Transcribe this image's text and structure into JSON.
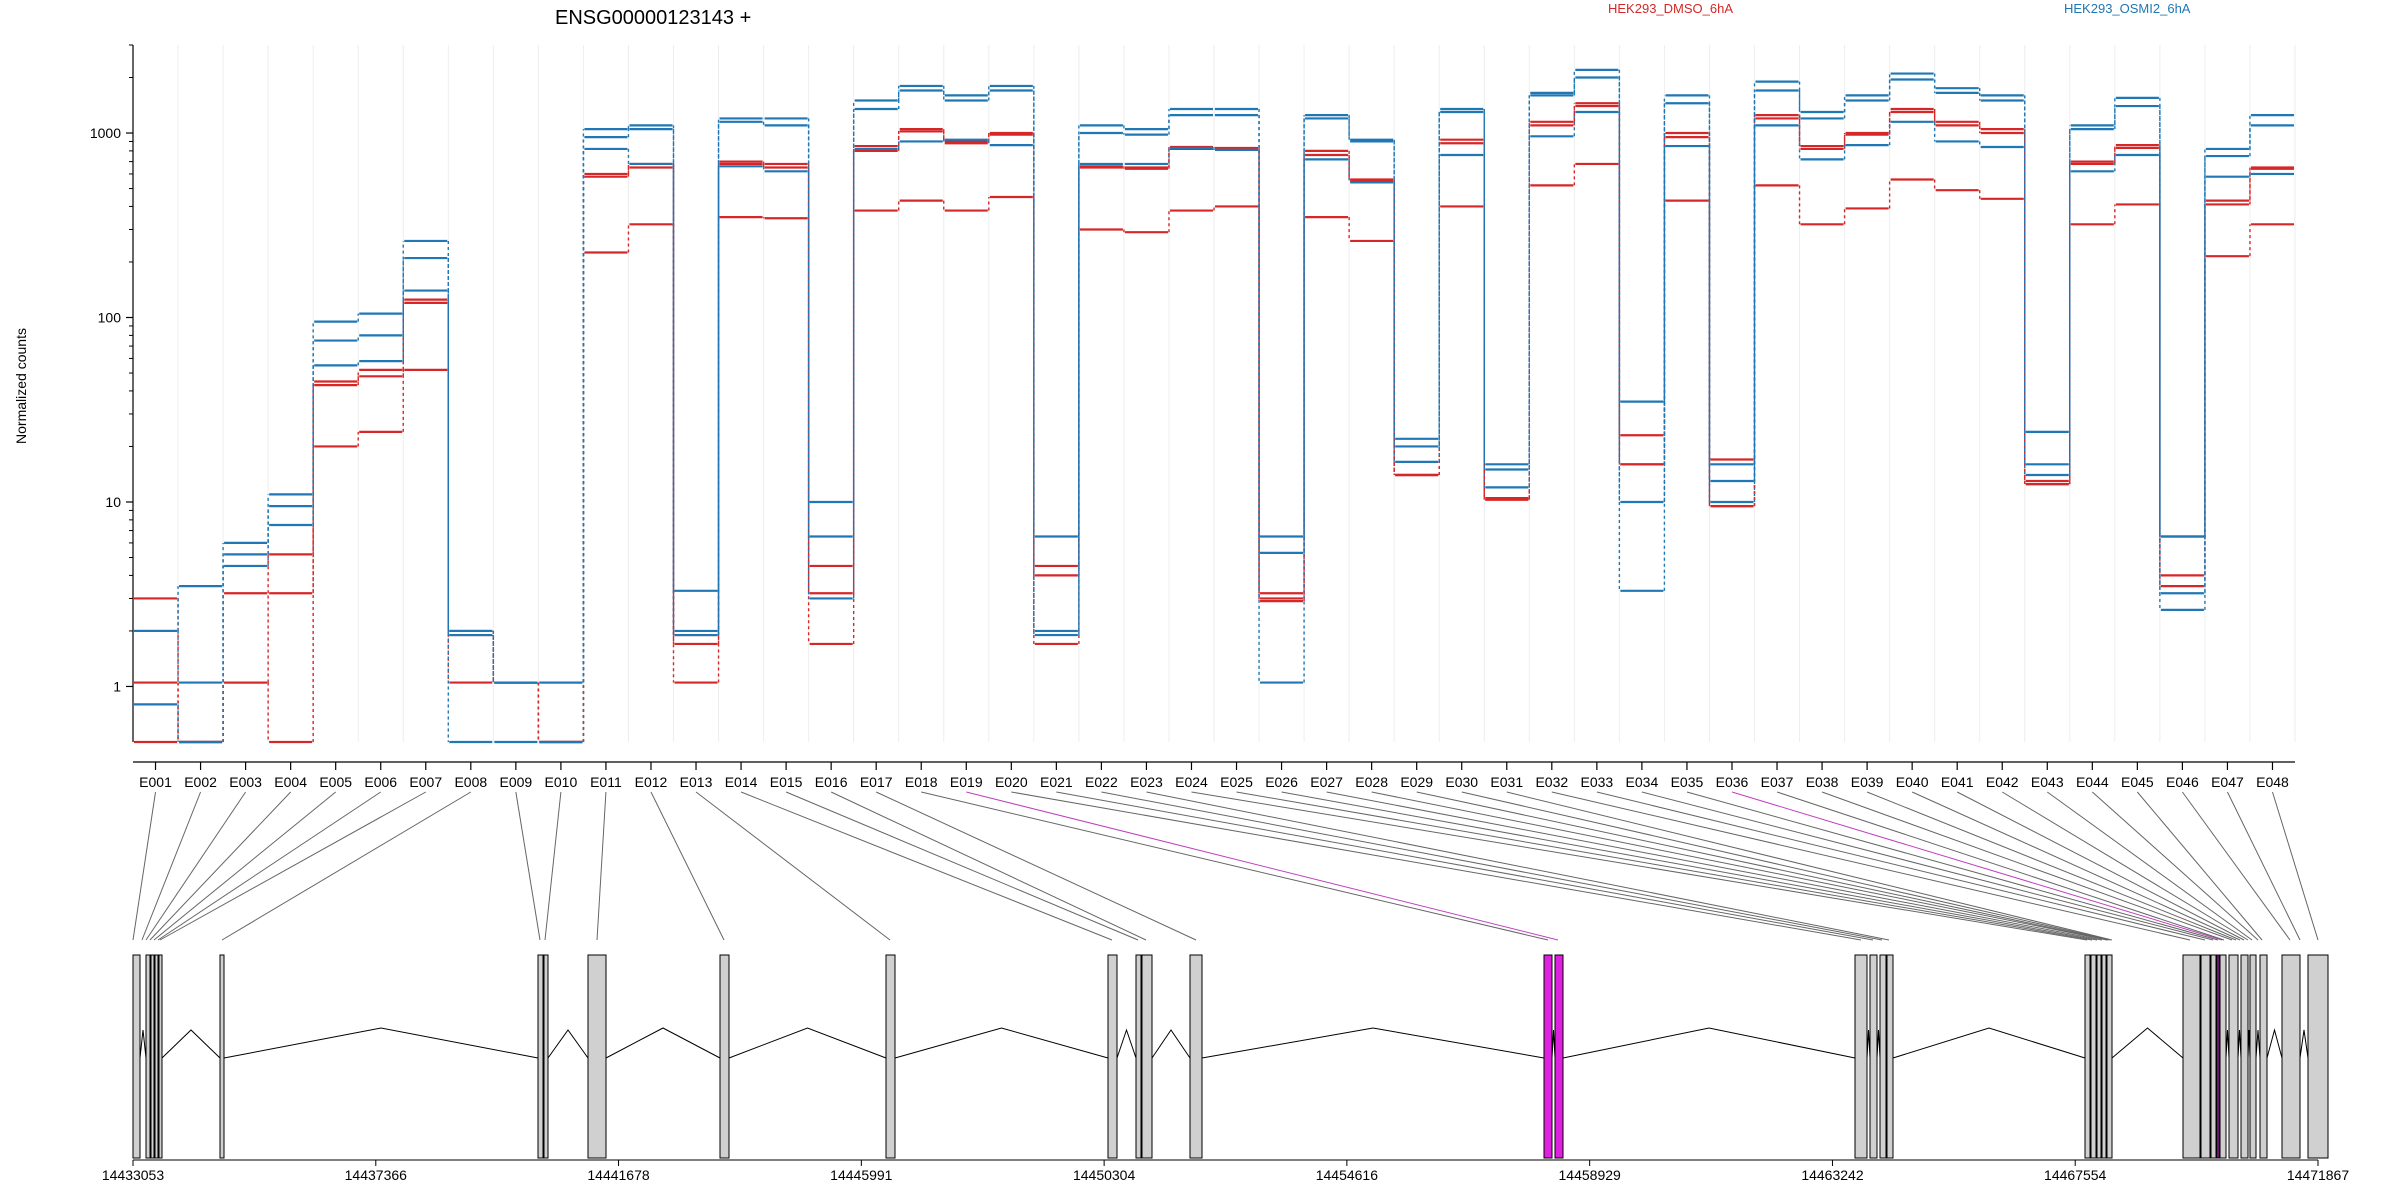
{
  "chart_data": {
    "type": "line",
    "title": "ENSG00000123143 +",
    "xlabel": "",
    "ylabel": "Normalized counts",
    "y_scale": "log",
    "ylim": [
      0.5,
      3000
    ],
    "y_ticks": [
      1,
      10,
      100,
      1000
    ],
    "y_tick_labels": [
      "1",
      "10",
      "100",
      "1000"
    ],
    "grid": "vertical-only",
    "legend_placement": "top",
    "categories": [
      "E001",
      "E002",
      "E003",
      "E004",
      "E005",
      "E006",
      "E007",
      "E008",
      "E009",
      "E010",
      "E011",
      "E012",
      "E013",
      "E014",
      "E015",
      "E016",
      "E017",
      "E018",
      "E019",
      "E020",
      "E021",
      "E022",
      "E023",
      "E024",
      "E025",
      "E026",
      "E027",
      "E028",
      "E029",
      "E030",
      "E031",
      "E032",
      "E033",
      "E034",
      "E035",
      "E036",
      "E037",
      "E038",
      "E039",
      "E040",
      "E041",
      "E042",
      "E043",
      "E044",
      "E045",
      "E046",
      "E047",
      "E048"
    ],
    "series": [
      {
        "name": "HEK293_DMSO_6hA",
        "color": "#d62728",
        "values": [
          3,
          0.5,
          3.2,
          5.2,
          45,
          52,
          125,
          2,
          1.05,
          0.5,
          600,
          680,
          1.9,
          700,
          680,
          4.5,
          850,
          1050,
          900,
          1000,
          4.5,
          660,
          650,
          840,
          830,
          3.2,
          800,
          550,
          14,
          920,
          10.5,
          1150,
          1450,
          23,
          1000,
          17,
          1250,
          850,
          1000,
          1350,
          1150,
          1050,
          13,
          700,
          860,
          6.5,
          430,
          650
        ]
      },
      {
        "name": "HEK293_DMSO_6hA",
        "color": "#d62728",
        "values": [
          1.05,
          0.5,
          1.05,
          3.2,
          43,
          48,
          120,
          1.9,
          1.05,
          0.5,
          580,
          650,
          1.7,
          680,
          650,
          3.2,
          800,
          1020,
          880,
          980,
          4,
          650,
          640,
          820,
          810,
          3,
          760,
          560,
          14,
          880,
          10.3,
          1100,
          1400,
          16,
          950,
          9.5,
          1200,
          820,
          980,
          1300,
          1100,
          1000,
          12.5,
          680,
          830,
          4,
          410,
          640
        ]
      },
      {
        "name": "HEK293_DMSO_6hA",
        "color": "#d62728",
        "values": [
          0.5,
          0.5,
          1.05,
          0.5,
          20,
          24,
          52,
          1.05,
          1.05,
          0.5,
          225,
          320,
          1.05,
          350,
          345,
          1.7,
          380,
          430,
          380,
          450,
          1.7,
          300,
          290,
          380,
          400,
          2.9,
          350,
          260,
          14,
          400,
          10.3,
          520,
          680,
          16,
          430,
          9.5,
          520,
          320,
          390,
          560,
          490,
          440,
          12.5,
          320,
          410,
          3.5,
          215,
          320
        ]
      },
      {
        "name": "HEK293_OSMI2_6hA",
        "color": "#1f77b4",
        "values": [
          2,
          3.5,
          6,
          11,
          95,
          105,
          260,
          2,
          1.05,
          1.05,
          1050,
          1100,
          3.3,
          1200,
          1200,
          10,
          1500,
          1800,
          1600,
          1800,
          6.5,
          1100,
          1050,
          1350,
          1350,
          6.5,
          1250,
          920,
          22,
          1350,
          16,
          1650,
          2200,
          35,
          1600,
          16,
          1900,
          1300,
          1600,
          2100,
          1750,
          1600,
          24,
          1100,
          1550,
          6.5,
          820,
          1250
        ]
      },
      {
        "name": "HEK293_OSMI2_6hA",
        "color": "#1f77b4",
        "values": [
          2,
          1.05,
          5.2,
          9.5,
          75,
          80,
          210,
          1.9,
          1.05,
          1.05,
          950,
          1050,
          2,
          1150,
          1100,
          6.5,
          1350,
          1700,
          1500,
          1700,
          2,
          1000,
          980,
          1250,
          1250,
          5.3,
          1200,
          900,
          20,
          1300,
          15,
          1600,
          2000,
          10,
          1450,
          13,
          1700,
          1200,
          1500,
          1950,
          1650,
          1500,
          16,
          1050,
          1400,
          3.2,
          750,
          1100
        ]
      },
      {
        "name": "HEK293_OSMI2_6hA",
        "color": "#1f77b4",
        "values": [
          0.8,
          0.5,
          4.5,
          7.5,
          55,
          58,
          140,
          0.5,
          0.5,
          0.5,
          820,
          680,
          1.9,
          660,
          620,
          3,
          820,
          900,
          920,
          860,
          1.9,
          680,
          680,
          830,
          810,
          1.05,
          720,
          540,
          16.5,
          760,
          12,
          960,
          1300,
          3.3,
          850,
          10,
          1100,
          720,
          860,
          1150,
          900,
          840,
          14,
          620,
          760,
          2.6,
          580,
          600
        ]
      }
    ]
  },
  "legend": {
    "items": [
      {
        "label": "HEK293_DMSO_6hA",
        "color": "#d62728"
      },
      {
        "label": "HEK293_OSMI2_6hA",
        "color": "#1f77b4"
      }
    ]
  },
  "gene_model": {
    "coordinate_ticks": [
      "14433053",
      "14437366",
      "14441678",
      "14445991",
      "14450304",
      "14454616",
      "14458929",
      "14463242",
      "14467554",
      "14471867"
    ],
    "highlight_color": "#e020e0",
    "exon_fill": "#d0d0d0"
  }
}
